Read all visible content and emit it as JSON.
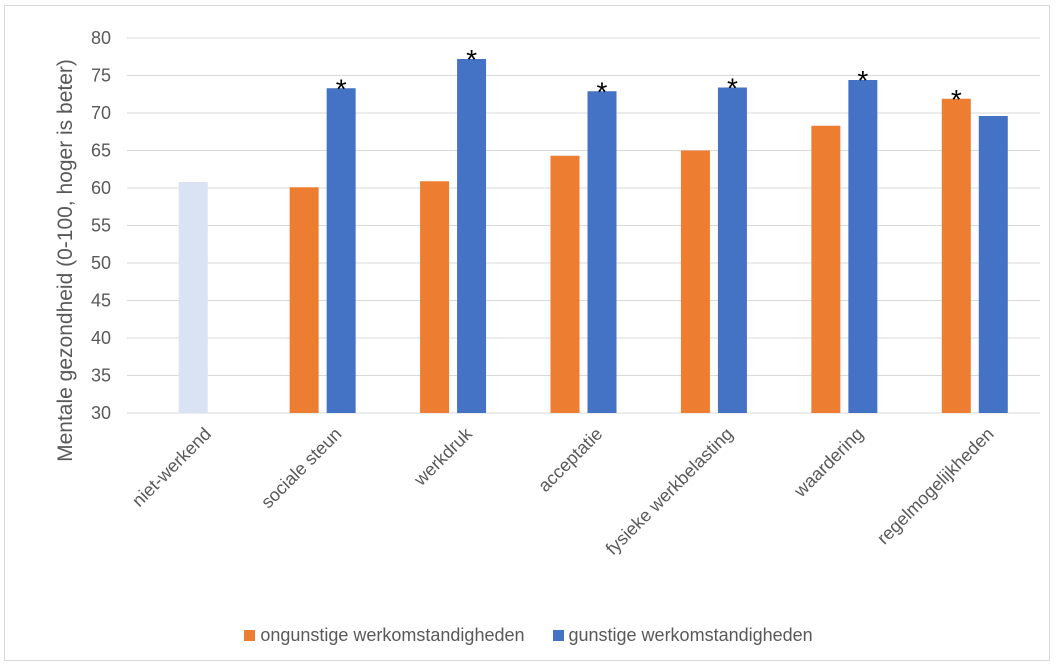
{
  "chart_data": {
    "type": "bar",
    "ylabel": "Mentale gezondheid (0-100, hoger is beter)",
    "ylim": [
      30,
      80
    ],
    "yticks": [
      30,
      35,
      40,
      45,
      50,
      55,
      60,
      65,
      70,
      75,
      80
    ],
    "grid": true,
    "legend_position": "bottom",
    "categories": [
      "niet-werkend",
      "sociale steun",
      "werkdruk",
      "acceptatie",
      "fysieke werkbelasting",
      "waardering",
      "regelmogelijkheden"
    ],
    "reference": {
      "category": "niet-werkend",
      "value": 60.8,
      "color": "#dae3f3"
    },
    "series": [
      {
        "name": "ongunstige werkomstandigheden",
        "color": "#ed7d31",
        "values": [
          null,
          60.1,
          60.9,
          64.3,
          65.0,
          68.3,
          71.9
        ]
      },
      {
        "name": "gunstige werkomstandigheden",
        "color": "#4472c4",
        "values": [
          null,
          73.3,
          77.2,
          72.9,
          73.4,
          74.4,
          69.6
        ]
      }
    ],
    "significance_marker": "*",
    "significance": [
      {
        "category": "sociale steun",
        "series": "gunstige werkomstandigheden"
      },
      {
        "category": "werkdruk",
        "series": "gunstige werkomstandigheden"
      },
      {
        "category": "acceptatie",
        "series": "gunstige werkomstandigheden"
      },
      {
        "category": "fysieke werkbelasting",
        "series": "gunstige werkomstandigheden"
      },
      {
        "category": "waardering",
        "series": "gunstige werkomstandigheden"
      },
      {
        "category": "regelmogelijkheden",
        "series": "ongunstige werkomstandigheden"
      }
    ],
    "gridline_color": "#d9d9d9"
  }
}
